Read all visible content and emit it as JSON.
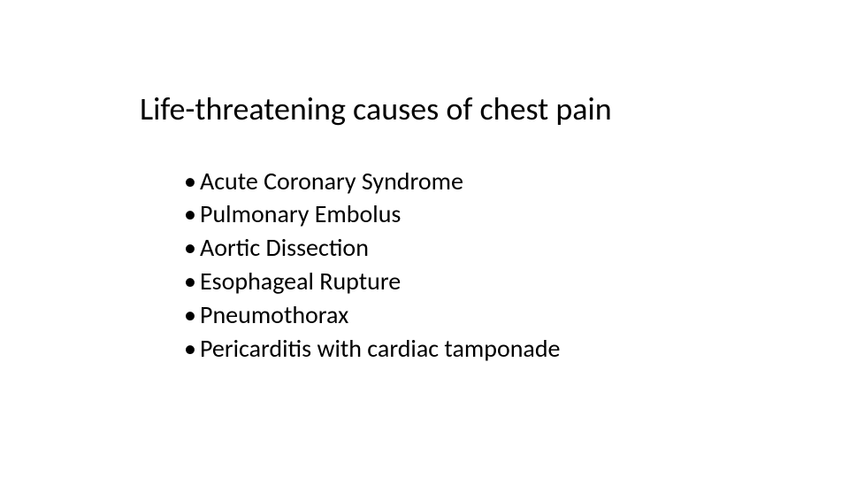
{
  "slide": {
    "title": "Life-threatening causes of chest pain",
    "title_fontsize": 36,
    "title_color": "#000000",
    "background_color": "#ffffff",
    "bullets": [
      "Acute Coronary Syndrome",
      "Pulmonary Embolus",
      "Aortic Dissection",
      "Esophageal Rupture",
      "Pneumothorax",
      "Pericarditis with cardiac tamponade"
    ],
    "bullet_fontsize": 28,
    "bullet_color": "#000000",
    "font_family": "Calibri"
  }
}
